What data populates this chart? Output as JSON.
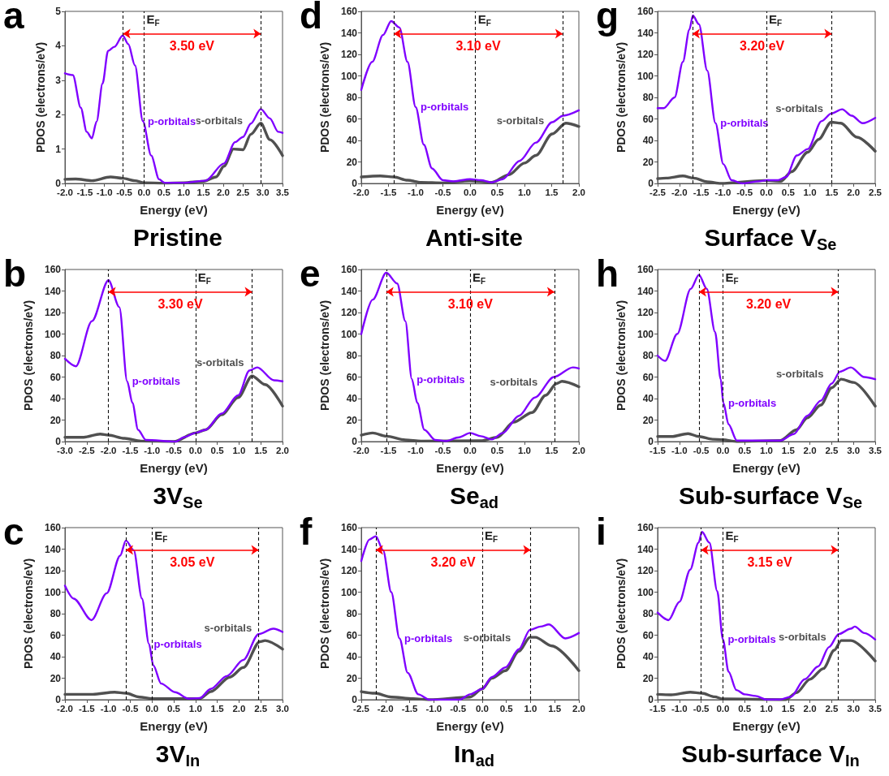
{
  "chart_data": [
    {
      "type": "line",
      "title": "Pristine",
      "xlabel": "Energy (eV)",
      "ylabel": "PDOS (electrons/eV)",
      "xlim": [
        -2,
        3.5
      ],
      "xticks": [
        {
          "value": -2,
          "label": "-2.0"
        },
        -1.5,
        {
          "value": -1,
          "label": "-1.0"
        },
        -0.5,
        {
          "value": 0,
          "label": "0.0"
        },
        0.5,
        {
          "value": 1,
          "label": "1.0"
        },
        1.5,
        {
          "value": 2,
          "label": "2.0"
        },
        2.5,
        {
          "value": 3,
          "label": "3.0"
        },
        3.5
      ],
      "ylim": [
        0,
        5
      ],
      "yticks": [
        0,
        1,
        2,
        3,
        4,
        5
      ],
      "series": [
        {
          "name": "p-orbitals",
          "color": "#7f00ff",
          "x": [
            -2,
            -1.8,
            -1.6,
            -1.45,
            -1.32,
            -1.2,
            -1.05,
            -0.91,
            -0.75,
            -0.54,
            -0.4,
            -0.23,
            -0.03,
            0.18,
            0.38,
            0.52,
            1.0,
            1.55,
            2.02,
            2.3,
            2.5,
            2.7,
            2.95,
            3.18,
            3.39,
            3.5
          ],
          "values": [
            3.2,
            3.15,
            2.2,
            1.5,
            1.31,
            1.8,
            2.9,
            3.85,
            3.97,
            4.3,
            4.05,
            3.43,
            1.81,
            0.81,
            0.12,
            0.02,
            0.02,
            0.08,
            0.58,
            1.2,
            1.35,
            1.74,
            2.16,
            1.89,
            1.5,
            1.47
          ]
        },
        {
          "name": "s-orbitals",
          "color": "#505050",
          "x": [
            -2,
            -1.73,
            -1.32,
            -0.85,
            -0.54,
            -0.23,
            0,
            0.5,
            1.0,
            1.5,
            1.82,
            2.02,
            2.26,
            2.5,
            2.7,
            2.95,
            3.18,
            3.5
          ],
          "values": [
            0.12,
            0.13,
            0.08,
            0.19,
            0.15,
            0.08,
            0.02,
            0.01,
            0.02,
            0.06,
            0.19,
            0.5,
            1.0,
            0.98,
            1.43,
            1.75,
            1.27,
            0.81
          ]
        }
      ],
      "ref_lines": [
        {
          "axis": "x",
          "value": -0.53,
          "line_style": "dashed"
        },
        {
          "axis": "x",
          "value": 0,
          "label": "E$_{F}$",
          "line_style": "dashed"
        },
        {
          "axis": "x",
          "value": 2.95,
          "line_style": "dashed"
        }
      ],
      "annotations": [
        "a",
        "3.50 eV"
      ]
    },
    {
      "type": "line",
      "title": "3V$_{Se}$",
      "xlabel": "Energy (eV)",
      "ylabel": "PDOS (electrons/eV)",
      "xlim": [
        -3,
        2
      ],
      "xticks": [
        {
          "value": -3,
          "label": "-3.0"
        },
        -2.5,
        {
          "value": -2,
          "label": "-2.0"
        },
        -1.5,
        {
          "value": -1,
          "label": "-1.0"
        },
        -0.5,
        {
          "value": 0,
          "label": "0.0"
        },
        0.5,
        {
          "value": 1,
          "label": "1.0"
        },
        1.5,
        {
          "value": 2,
          "label": "2.0"
        }
      ],
      "ylim": [
        0,
        160
      ],
      "yticks": [
        0,
        20,
        40,
        60,
        80,
        100,
        120,
        140,
        160
      ],
      "series": [
        {
          "name": "p-orbitals",
          "color": "#7f00ff",
          "x": [
            -3,
            -2.75,
            -2.38,
            -2.0,
            -1.75,
            -1.57,
            -1.45,
            -1.32,
            -1.14,
            -0.45,
            -0.27,
            0,
            0.23,
            0.6,
            0.98,
            1.24,
            1.42,
            1.8,
            2.0
          ],
          "values": [
            77,
            70,
            112,
            150,
            125,
            56,
            36,
            11,
            1.5,
            0,
            4,
            8,
            11,
            26,
            43,
            66,
            69,
            57,
            56
          ]
        },
        {
          "name": "s-orbitals",
          "color": "#505050",
          "x": [
            -3,
            -2.57,
            -2.19,
            -2.0,
            -1.63,
            -1.25,
            -0.5,
            0,
            0.23,
            0.6,
            0.98,
            1.3,
            1.6,
            2.0
          ],
          "values": [
            4,
            4,
            7,
            6,
            3,
            0.5,
            0,
            8,
            11,
            25,
            41,
            61,
            53,
            33
          ]
        }
      ],
      "ref_lines": [
        {
          "axis": "x",
          "value": -2.0,
          "line_style": "dashed"
        },
        {
          "axis": "x",
          "value": 0,
          "label": "E$_{F}$",
          "line_style": "dashed"
        },
        {
          "axis": "x",
          "value": 1.3,
          "line_style": "dashed"
        }
      ],
      "annotations": [
        "b",
        "3.30 eV"
      ]
    },
    {
      "type": "line",
      "title": "3V$_{In}$",
      "xlabel": "Energy (eV)",
      "ylabel": "PDOS (electrons/eV)",
      "xlim": [
        -2,
        3
      ],
      "xticks": [
        {
          "value": -2,
          "label": "-2.0"
        },
        -1.5,
        {
          "value": -1,
          "label": "-1.0"
        },
        -0.5,
        {
          "value": 0,
          "label": "0.0"
        },
        0.5,
        {
          "value": 1,
          "label": "1.0"
        },
        1.5,
        {
          "value": 2,
          "label": "2.0"
        },
        2.5,
        {
          "value": 3,
          "label": "3.0"
        }
      ],
      "ylim": [
        0,
        160
      ],
      "yticks": [
        0,
        20,
        40,
        60,
        80,
        100,
        120,
        140,
        160
      ],
      "series": [
        {
          "name": "p-orbitals",
          "color": "#7f00ff",
          "x": [
            -2,
            -1.8,
            -1.39,
            -1.04,
            -0.73,
            -0.6,
            -0.42,
            -0.23,
            -0.07,
            0.03,
            0.21,
            0.53,
            0.84,
            1.1,
            1.35,
            1.72,
            2.1,
            2.45,
            2.79,
            3.0
          ],
          "values": [
            106,
            94,
            74,
            99,
            134,
            148,
            139,
            94,
            52,
            32,
            15,
            7,
            1,
            1.5,
            10,
            22,
            37,
            61,
            66,
            63
          ]
        },
        {
          "name": "s-orbitals",
          "color": "#505050",
          "x": [
            -2,
            -1.36,
            -0.86,
            -0.6,
            -0.29,
            0,
            1.1,
            1.35,
            1.79,
            2.1,
            2.48,
            2.6,
            3.0
          ],
          "values": [
            5,
            5,
            7,
            6,
            2.5,
            1,
            1,
            7.5,
            21,
            30,
            54,
            55,
            47
          ]
        }
      ],
      "ref_lines": [
        {
          "axis": "x",
          "value": -0.6,
          "line_style": "dashed"
        },
        {
          "axis": "x",
          "value": 0,
          "label": "E$_{F}$",
          "line_style": "dashed"
        },
        {
          "axis": "x",
          "value": 2.45,
          "line_style": "dashed"
        }
      ],
      "annotations": [
        "c",
        "3.05 eV"
      ]
    },
    {
      "type": "line",
      "title": "Anti-site",
      "xlabel": "Energy (eV)",
      "ylabel": "PDOS (electrons/eV)",
      "xlim": [
        -2,
        2
      ],
      "xticks": [
        {
          "value": -2,
          "label": "-2.0"
        },
        -1.5,
        {
          "value": -1,
          "label": "-1.0"
        },
        -0.5,
        {
          "value": 0,
          "label": "0.0"
        },
        0.5,
        {
          "value": 1,
          "label": "1.0"
        },
        1.5,
        {
          "value": 2,
          "label": "2.0"
        }
      ],
      "ylim": [
        0,
        160
      ],
      "yticks": [
        0,
        20,
        40,
        60,
        80,
        100,
        120,
        140,
        160
      ],
      "series": [
        {
          "name": "p-orbitals",
          "color": "#7f00ff",
          "x": [
            -2,
            -1.8,
            -1.6,
            -1.45,
            -1.3,
            -1.15,
            -1.0,
            -0.85,
            -0.7,
            -0.5,
            -0.3,
            0,
            0.2,
            0.4,
            0.6,
            0.91,
            1.21,
            1.51,
            1.71,
            2.0
          ],
          "values": [
            87,
            113,
            138,
            151,
            145,
            113,
            71,
            36,
            14,
            3,
            2,
            4,
            3,
            1,
            4,
            21,
            38,
            57,
            63,
            68
          ]
        },
        {
          "name": "s-orbitals",
          "color": "#505050",
          "x": [
            -2,
            -1.65,
            -1.4,
            -1.15,
            -0.9,
            -0.5,
            0,
            0.4,
            0.71,
            1.0,
            1.21,
            1.51,
            1.76,
            2.0
          ],
          "values": [
            6,
            7,
            6,
            3,
            1,
            0.5,
            2.5,
            1,
            8,
            19,
            26,
            46,
            56,
            53
          ]
        }
      ],
      "ref_lines": [
        {
          "axis": "x",
          "value": -1.4,
          "line_style": "dashed"
        },
        {
          "axis": "x",
          "value": 0.1,
          "label": "E$_{F}$",
          "line_style": "dashed"
        },
        {
          "axis": "x",
          "value": 1.7,
          "line_style": "dashed"
        }
      ],
      "annotations": [
        "d",
        "3.10 eV"
      ]
    },
    {
      "type": "line",
      "title": "Se$_{ad}$",
      "xlabel": "Energy (eV)",
      "ylabel": "PDOS (electrons/eV)",
      "xlim": [
        -2,
        2
      ],
      "xticks": [
        {
          "value": -2,
          "label": "-2.0"
        },
        -1.5,
        {
          "value": -1,
          "label": "-1.0"
        },
        -0.5,
        {
          "value": 0,
          "label": "0.0"
        },
        0.5,
        {
          "value": 1,
          "label": "1.0"
        },
        1.5,
        {
          "value": 2,
          "label": "2.0"
        }
      ],
      "ylim": [
        0,
        160
      ],
      "yticks": [
        0,
        20,
        40,
        60,
        80,
        100,
        120,
        140,
        160
      ],
      "series": [
        {
          "name": "p-orbitals",
          "color": "#7f00ff",
          "x": [
            -2,
            -1.79,
            -1.54,
            -1.34,
            -1.19,
            -1.07,
            -0.97,
            -0.84,
            -0.64,
            -0.45,
            -0.2,
            0,
            0.2,
            0.4,
            0.6,
            0.9,
            1.19,
            1.54,
            1.89,
            2.0
          ],
          "values": [
            100,
            132,
            157,
            147,
            112,
            58,
            36,
            11,
            1.5,
            0.5,
            4,
            8,
            5,
            2,
            8,
            24,
            41,
            60,
            69,
            68
          ]
        },
        {
          "name": "s-orbitals",
          "color": "#505050",
          "x": [
            -2,
            -1.79,
            -1.54,
            -1.19,
            -0.9,
            0.2,
            0.5,
            0.8,
            1.14,
            1.39,
            1.59,
            1.69,
            2.0
          ],
          "values": [
            6,
            8,
            5,
            1.5,
            0.5,
            0.7,
            4,
            18,
            27,
            43,
            54,
            56,
            51
          ]
        }
      ],
      "ref_lines": [
        {
          "axis": "x",
          "value": -1.54,
          "line_style": "dashed"
        },
        {
          "axis": "x",
          "value": 0,
          "label": "E$_{F}$",
          "line_style": "dashed"
        },
        {
          "axis": "x",
          "value": 1.55,
          "line_style": "dashed"
        }
      ],
      "annotations": [
        "e",
        "3.10 eV"
      ]
    },
    {
      "type": "line",
      "title": "In$_{ad}$",
      "xlabel": "Energy (eV)",
      "ylabel": "PDOS (electrons/eV)",
      "xlim": [
        -2.5,
        2
      ],
      "xticks": [
        -2.5,
        {
          "value": -2,
          "label": "-2.0"
        },
        -1.5,
        {
          "value": -1,
          "label": "-1.0"
        },
        -0.5,
        {
          "value": 0,
          "label": "0.0"
        },
        0.5,
        {
          "value": 1,
          "label": "1.0"
        },
        1.5,
        {
          "value": 2,
          "label": "2.0"
        }
      ],
      "ylim": [
        0,
        160
      ],
      "yticks": [
        0,
        20,
        40,
        60,
        80,
        100,
        120,
        140,
        160
      ],
      "series": [
        {
          "name": "p-orbitals",
          "color": "#7f00ff",
          "x": [
            -2.5,
            -2.33,
            -2.2,
            -2.05,
            -1.88,
            -1.71,
            -1.54,
            -1.32,
            -1.09,
            -0.47,
            -0.25,
            0,
            0.2,
            0.48,
            0.76,
            0.99,
            1.21,
            1.38,
            1.72,
            2.0
          ],
          "values": [
            129,
            149,
            152,
            139,
            100,
            57,
            25,
            5,
            0,
            0,
            5,
            10,
            21,
            30,
            47,
            65,
            68,
            70,
            57,
            62
          ]
        },
        {
          "name": "s-orbitals",
          "color": "#505050",
          "x": [
            -2.5,
            -2.22,
            -1.88,
            -1.43,
            -1.09,
            -0.25,
            0,
            0.2,
            0.48,
            0.76,
            0.99,
            1.1,
            1.44,
            2.0
          ],
          "values": [
            7.5,
            6,
            2.5,
            1,
            0,
            2.5,
            10,
            20,
            27,
            45,
            58,
            58,
            50,
            27
          ]
        }
      ],
      "ref_lines": [
        {
          "axis": "x",
          "value": -2.2,
          "line_style": "dashed"
        },
        {
          "axis": "x",
          "value": 0,
          "label": "E$_{F}$",
          "line_style": "dashed"
        },
        {
          "axis": "x",
          "value": 1.0,
          "line_style": "dashed"
        }
      ],
      "annotations": [
        "f",
        "3.20 eV"
      ]
    },
    {
      "type": "line",
      "title": "Surface V$_{Se}$",
      "xlabel": "Energy (eV)",
      "ylabel": "PDOS (electrons/eV)",
      "xlim": [
        -2.5,
        2.5
      ],
      "xticks": [
        -2.5,
        {
          "value": -2,
          "label": "-2.0"
        },
        -1.5,
        {
          "value": -1,
          "label": "-1.0"
        },
        -0.5,
        {
          "value": 0,
          "label": "0.0"
        },
        0.5,
        {
          "value": 1,
          "label": "1.0"
        },
        1.5,
        {
          "value": 2,
          "label": "2.0"
        },
        2.5
      ],
      "ylim": [
        0,
        160
      ],
      "yticks": [
        0,
        20,
        40,
        60,
        80,
        100,
        120,
        140,
        160
      ],
      "series": [
        {
          "name": "p-orbitals",
          "color": "#7f00ff",
          "x": [
            -2.5,
            -2.36,
            -2.11,
            -1.92,
            -1.77,
            -1.69,
            -1.55,
            -1.36,
            -1.17,
            -0.99,
            -0.8,
            -0.55,
            -0.17,
            0.02,
            0.27,
            0.45,
            0.7,
            0.95,
            1.27,
            1.49,
            1.74,
            1.96,
            2.21,
            2.5
          ],
          "values": [
            70,
            70,
            80,
            113,
            143,
            156,
            148,
            105,
            56,
            18,
            3,
            0,
            2,
            3,
            3,
            6,
            26,
            32,
            58,
            65,
            69,
            63,
            56,
            61
          ]
        },
        {
          "name": "s-orbitals",
          "color": "#505050",
          "x": [
            -2.5,
            -2.3,
            -1.92,
            -1.67,
            -1.36,
            -1.05,
            -0.05,
            0.33,
            0.58,
            0.95,
            1.2,
            1.49,
            1.71,
            2.08,
            2.5
          ],
          "values": [
            4.5,
            5,
            7,
            5,
            1.5,
            0,
            2.7,
            2,
            11,
            29,
            41,
            57,
            56,
            43,
            30
          ]
        }
      ],
      "ref_lines": [
        {
          "axis": "x",
          "value": -1.7,
          "line_style": "dashed"
        },
        {
          "axis": "x",
          "value": 0,
          "label": "E$_{F}$",
          "line_style": "dashed"
        },
        {
          "axis": "x",
          "value": 1.5,
          "line_style": "dashed"
        }
      ],
      "annotations": [
        "g",
        "3.20 eV"
      ]
    },
    {
      "type": "line",
      "title": "Sub-surface V$_{Se}$",
      "xlabel": "Energy (eV)",
      "ylabel": "PDOS (electrons/eV)",
      "xlim": [
        -1.5,
        3.5
      ],
      "xticks": [
        -1.5,
        {
          "value": -1,
          "label": "-1.0"
        },
        -0.5,
        {
          "value": 0,
          "label": "0.0"
        },
        0.5,
        {
          "value": 1,
          "label": "1.0"
        },
        1.5,
        {
          "value": 2,
          "label": "2.0"
        },
        2.5,
        {
          "value": 3,
          "label": "3.0"
        },
        3.5
      ],
      "ylim": [
        0,
        160
      ],
      "yticks": [
        0,
        20,
        40,
        60,
        80,
        100,
        120,
        140,
        160
      ],
      "series": [
        {
          "name": "p-orbitals",
          "color": "#7f00ff",
          "x": [
            -1.5,
            -1.33,
            -1.05,
            -0.74,
            -0.55,
            -0.37,
            -0.18,
            -0.05,
            0.01,
            0.13,
            0.32,
            1.32,
            1.63,
            1.94,
            2.25,
            2.5,
            2.69,
            2.94,
            3.25,
            3.5
          ],
          "values": [
            80,
            75,
            100,
            142,
            155,
            142,
            102,
            58,
            36,
            16,
            1,
            1,
            7,
            24,
            38,
            54,
            65,
            69,
            60,
            58
          ]
        },
        {
          "name": "s-orbitals",
          "color": "#505050",
          "x": [
            -1.5,
            -1.18,
            -0.8,
            -0.55,
            -0.24,
            0,
            0.32,
            1.32,
            1.69,
            1.94,
            2.25,
            2.5,
            2.72,
            3.0,
            3.5
          ],
          "values": [
            4.7,
            4.7,
            7.4,
            4.7,
            2.2,
            1.7,
            0,
            1,
            11,
            22,
            34,
            50,
            58,
            55,
            33
          ]
        }
      ],
      "ref_lines": [
        {
          "axis": "x",
          "value": -0.55,
          "line_style": "dashed"
        },
        {
          "axis": "x",
          "value": 0,
          "label": "E$_{F}$",
          "line_style": "dashed"
        },
        {
          "axis": "x",
          "value": 2.65,
          "line_style": "dashed"
        }
      ],
      "annotations": [
        "h",
        "3.20 eV"
      ]
    },
    {
      "type": "line",
      "title": "Sub-surface V$_{In}$",
      "xlabel": "Energy (eV)",
      "ylabel": "PDOS (electrons/eV)",
      "xlim": [
        -1.5,
        3.5
      ],
      "xticks": [
        -1.5,
        {
          "value": -1,
          "label": "-1.0"
        },
        -0.5,
        {
          "value": 0,
          "label": "0.0"
        },
        0.5,
        {
          "value": 1,
          "label": "1.0"
        },
        1.5,
        {
          "value": 2,
          "label": "2.0"
        },
        2.5,
        {
          "value": 3,
          "label": "3.0"
        },
        3.5
      ],
      "ylim": [
        0,
        160
      ],
      "yticks": [
        0,
        20,
        40,
        60,
        80,
        100,
        120,
        140,
        160
      ],
      "series": [
        {
          "name": "p-orbitals",
          "color": "#7f00ff",
          "x": [
            -1.5,
            -1.25,
            -1.0,
            -0.75,
            -0.56,
            -0.48,
            -0.31,
            -0.13,
            0,
            0.13,
            0.31,
            0.5,
            0.75,
            1.0,
            1.31,
            1.56,
            1.88,
            2.19,
            2.44,
            2.66,
            2.94,
            3.03,
            3.25,
            3.5
          ],
          "values": [
            81,
            74,
            91,
            121,
            146,
            156,
            146,
            101,
            56,
            26,
            9,
            5,
            3.5,
            0.2,
            0.2,
            2.7,
            19,
            31,
            49,
            61,
            66,
            68,
            62,
            56
          ]
        },
        {
          "name": "s-orbitals",
          "color": "#505050",
          "x": [
            -1.5,
            -1.19,
            -0.75,
            -0.48,
            -0.19,
            0,
            1.44,
            1.69,
            2.0,
            2.31,
            2.56,
            2.72,
            2.94,
            3.5
          ],
          "values": [
            5,
            4.5,
            7,
            6,
            2.7,
            0.7,
            0,
            6.5,
            19,
            29,
            46,
            55,
            55,
            36
          ]
        }
      ],
      "ref_lines": [
        {
          "axis": "x",
          "value": -0.5,
          "line_style": "dashed"
        },
        {
          "axis": "x",
          "value": 0,
          "label": "E$_{F}$",
          "line_style": "dashed"
        },
        {
          "axis": "x",
          "value": 2.65,
          "line_style": "dashed"
        }
      ],
      "annotations": [
        "i",
        "3.15 eV"
      ]
    }
  ]
}
